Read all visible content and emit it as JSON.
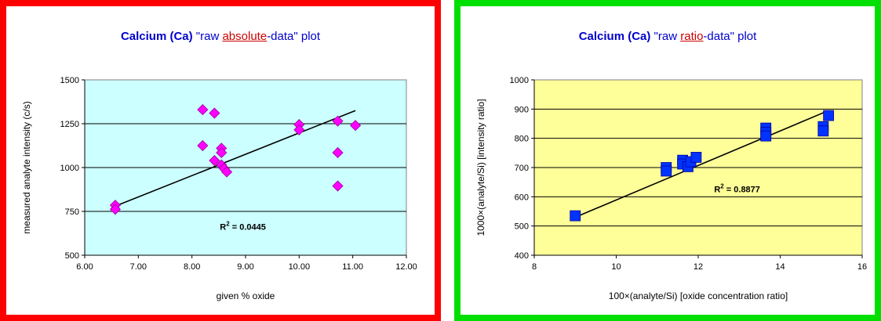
{
  "chart_data": [
    {
      "type": "scatter",
      "title_parts": [
        "Calcium (Ca)",
        " \"raw ",
        "absolute",
        "-data\" plot"
      ],
      "xlabel": "given % oxide",
      "ylabel": "measured analyte intensity (c/s)",
      "xlim": [
        6.0,
        12.0
      ],
      "ylim": [
        500,
        1500
      ],
      "x_ticks": [
        6,
        7,
        8,
        9,
        10,
        11,
        12
      ],
      "x_tick_labels": [
        "6.00",
        "7.00",
        "8.00",
        "9.00",
        "10.00",
        "11.00",
        "12.00"
      ],
      "y_ticks": [
        500,
        750,
        1000,
        1250,
        1500
      ],
      "y_tick_labels": [
        "500",
        "750",
        "1000",
        "1250",
        "1500"
      ],
      "grid": "horizontal",
      "plot_bg": "#ccffff",
      "marker": "diamond",
      "marker_color": "#ff00ff",
      "points": [
        [
          6.57,
          785
        ],
        [
          6.57,
          762
        ],
        [
          8.2,
          1330
        ],
        [
          8.2,
          1125
        ],
        [
          8.42,
          1310
        ],
        [
          8.42,
          1040
        ],
        [
          8.55,
          1110
        ],
        [
          8.55,
          1085
        ],
        [
          8.55,
          1015
        ],
        [
          8.6,
          995
        ],
        [
          8.65,
          975
        ],
        [
          10.0,
          1245
        ],
        [
          10.0,
          1215
        ],
        [
          10.72,
          1265
        ],
        [
          10.72,
          1085
        ],
        [
          10.72,
          895
        ],
        [
          11.05,
          1240
        ]
      ],
      "trendline": [
        [
          6.57,
          780
        ],
        [
          11.05,
          1325
        ]
      ],
      "annotation_label": "R",
      "annotation_sup": "2",
      "annotation_value": " = 0.0445",
      "annotation_pos": [
        8.95,
        645
      ]
    },
    {
      "type": "scatter",
      "title_parts": [
        "Calcium (Ca)",
        " \"raw ",
        "ratio",
        "-data\" plot"
      ],
      "xlabel": "100×(analyte/Si)  [oxide concentration ratio]",
      "ylabel": "1000×(analyte/Si) [intensity ratio]",
      "xlim": [
        8,
        16
      ],
      "ylim": [
        400,
        1000
      ],
      "x_ticks": [
        8,
        10,
        12,
        14,
        16
      ],
      "x_tick_labels": [
        "8",
        "10",
        "12",
        "14",
        "16"
      ],
      "y_ticks": [
        400,
        500,
        600,
        700,
        800,
        900,
        1000
      ],
      "y_tick_labels": [
        "400",
        "500",
        "600",
        "700",
        "800",
        "900",
        "1000"
      ],
      "grid": "horizontal",
      "plot_bg": "#ffff99",
      "marker": "square",
      "marker_color": "#0033ff",
      "points": [
        [
          9.0,
          535
        ],
        [
          11.22,
          700
        ],
        [
          11.22,
          688
        ],
        [
          11.62,
          725
        ],
        [
          11.62,
          712
        ],
        [
          11.75,
          703
        ],
        [
          11.82,
          720
        ],
        [
          11.95,
          735
        ],
        [
          13.65,
          835
        ],
        [
          13.65,
          820
        ],
        [
          13.65,
          808
        ],
        [
          15.05,
          840
        ],
        [
          15.05,
          825
        ],
        [
          15.18,
          878
        ]
      ],
      "trendline": [
        [
          9.0,
          530
        ],
        [
          15.18,
          895
        ]
      ],
      "annotation_label": "R",
      "annotation_sup": "2",
      "annotation_value": " = 0.8877",
      "annotation_pos": [
        12.95,
        615
      ]
    }
  ]
}
